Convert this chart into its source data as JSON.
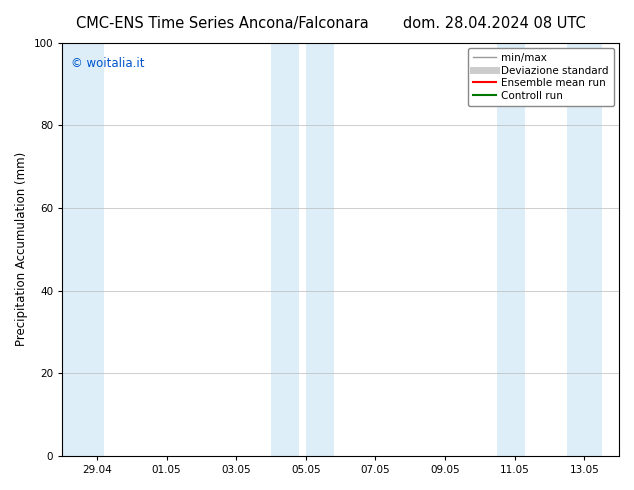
{
  "title_left": "CMC-ENS Time Series Ancona/Falconara",
  "title_right": "dom. 28.04.2024 08 UTC",
  "ylabel": "Precipitation Accumulation (mm)",
  "ylim": [
    0,
    100
  ],
  "yticks": [
    0,
    20,
    40,
    60,
    80,
    100
  ],
  "xtick_labels": [
    "29.04",
    "01.05",
    "03.05",
    "05.05",
    "07.05",
    "09.05",
    "11.05",
    "13.05"
  ],
  "background_color": "#ffffff",
  "plot_bg_color": "#ffffff",
  "shaded_color": "#ddeef9",
  "watermark_text": "© woitalia.it",
  "watermark_color": "#0055cc",
  "legend_items": [
    {
      "label": "min/max",
      "color": "#999999",
      "lw": 1.0,
      "style": "-"
    },
    {
      "label": "Deviazione standard",
      "color": "#cccccc",
      "lw": 5,
      "style": "-"
    },
    {
      "label": "Ensemble mean run",
      "color": "#ff0000",
      "lw": 1.5,
      "style": "-"
    },
    {
      "label": "Controll run",
      "color": "#007700",
      "lw": 1.5,
      "style": "-"
    }
  ],
  "grid_color": "#bbbbbb",
  "tick_fontsize": 7.5,
  "ylabel_fontsize": 8.5,
  "title_fontsize": 10.5,
  "watermark_fontsize": 8.5,
  "legend_fontsize": 7.5
}
